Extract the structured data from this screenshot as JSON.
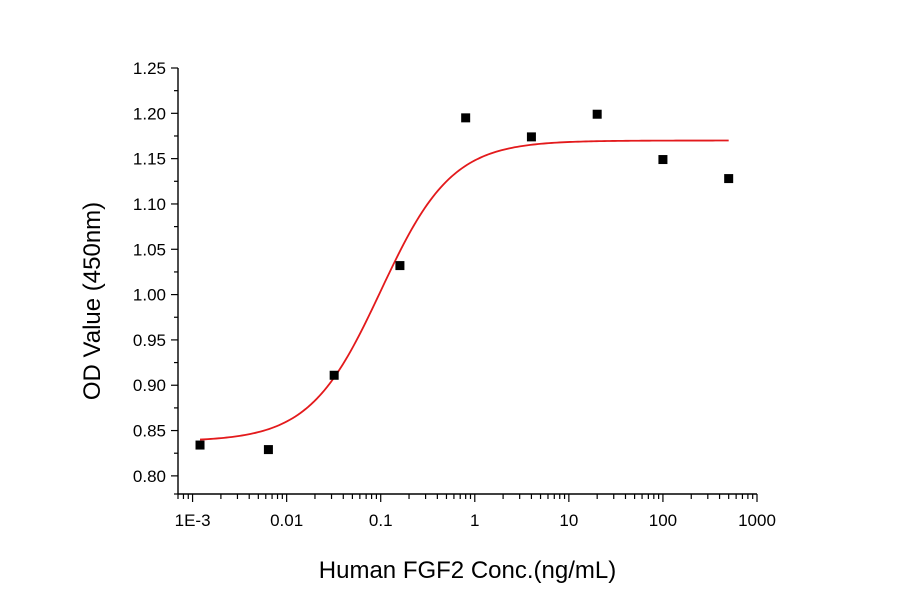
{
  "chart_data": {
    "type": "scatter",
    "title": "",
    "xlabel": "Human FGF2 Conc.(ng/mL)",
    "ylabel": "OD Value (450nm)",
    "x_scale": "log",
    "xlim": [
      0.0007,
      1000
    ],
    "ylim": [
      0.78,
      1.25
    ],
    "x_ticks": [
      0.001,
      0.01,
      0.1,
      1,
      10,
      100,
      1000
    ],
    "x_tick_labels": [
      "1E-3",
      "0.01",
      "0.1",
      "1",
      "10",
      "100",
      "1000"
    ],
    "y_ticks": [
      0.8,
      0.85,
      0.9,
      0.95,
      1.0,
      1.05,
      1.1,
      1.15,
      1.2,
      1.25
    ],
    "y_tick_labels": [
      "0.80",
      "0.85",
      "0.90",
      "0.95",
      "1.00",
      "1.05",
      "1.10",
      "1.15",
      "1.20",
      "1.25"
    ],
    "grid": false,
    "legend": "none",
    "series": [
      {
        "kind": "points",
        "marker": "square",
        "color": "#000000",
        "x": [
          0.0012,
          0.0064,
          0.032,
          0.16,
          0.8,
          4,
          20,
          100,
          500
        ],
        "y": [
          0.834,
          0.829,
          0.911,
          1.032,
          1.195,
          1.174,
          1.199,
          1.149,
          1.128
        ]
      },
      {
        "kind": "fit-curve",
        "color": "#e31a1c",
        "model": "4PL",
        "params": {
          "bottom": 0.838,
          "top": 1.17,
          "ec50": 0.1,
          "hill": 1.15
        },
        "x_range": [
          0.0012,
          500
        ]
      }
    ]
  }
}
